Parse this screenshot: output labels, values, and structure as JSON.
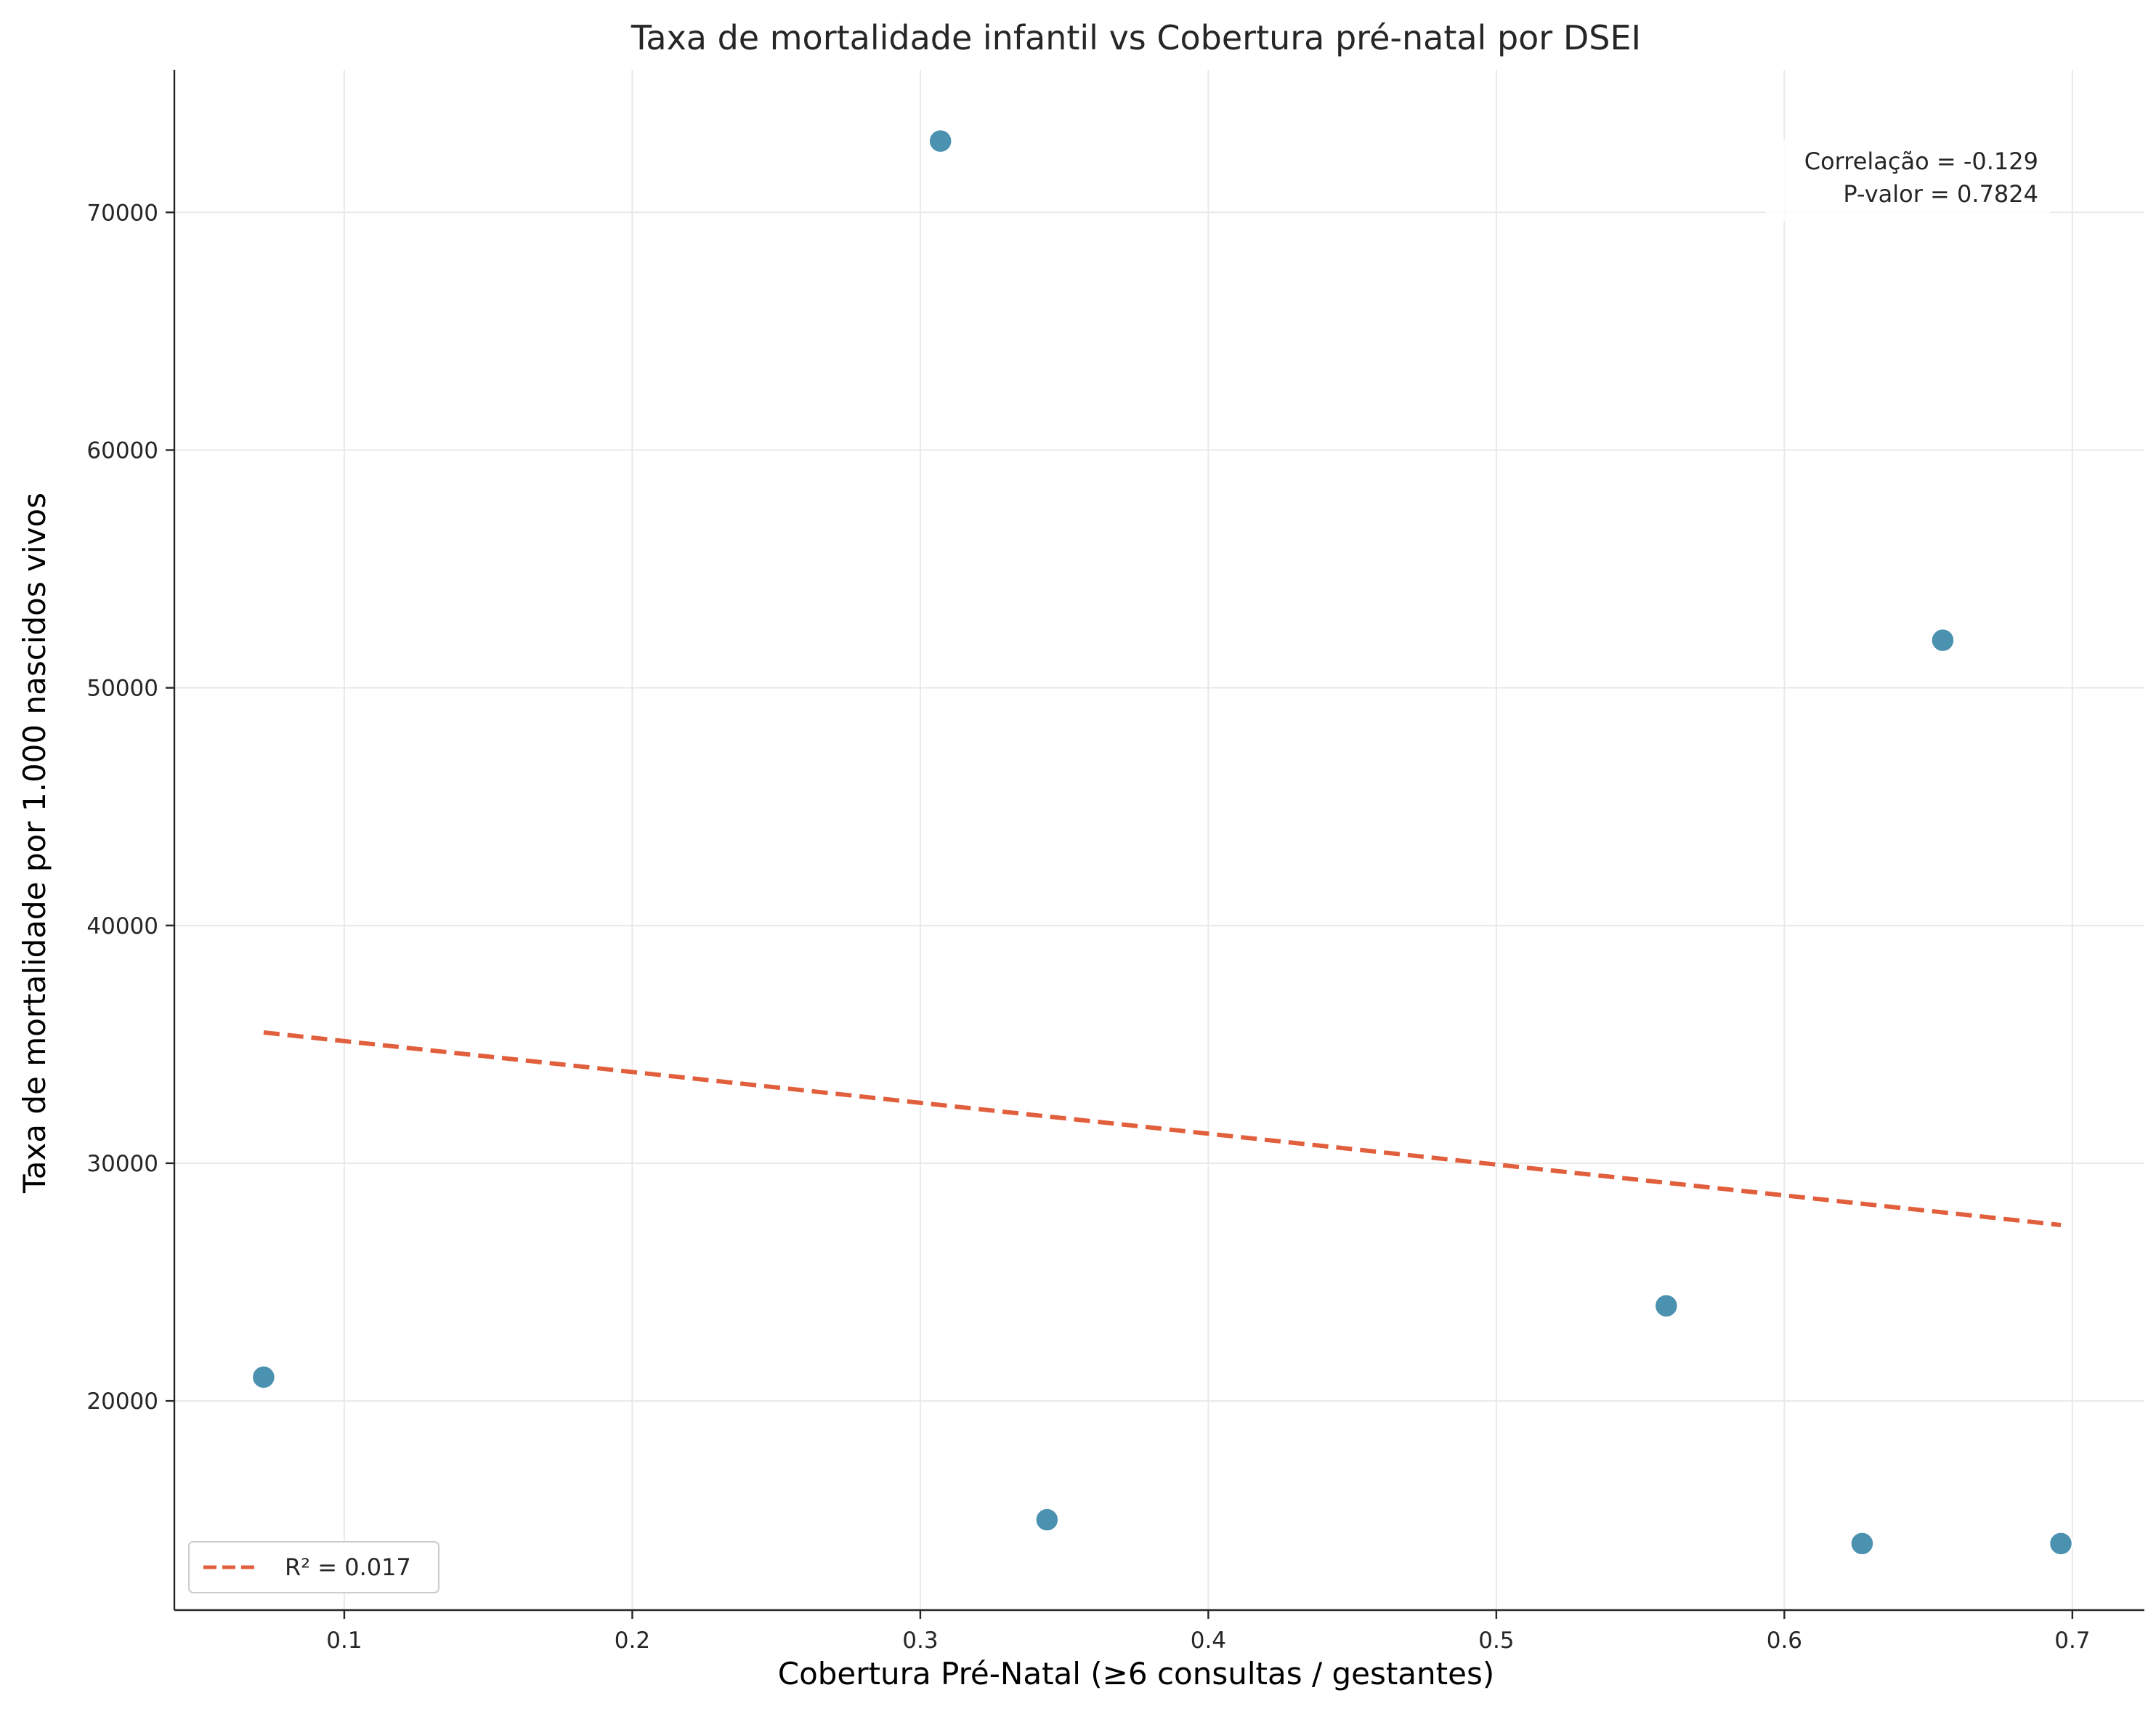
{
  "chart_data": {
    "type": "scatter",
    "title": "Taxa de mortalidade infantil vs Cobertura pré-natal por DSEI",
    "xlabel": "Cobertura Pré-Natal (≥6 consultas / gestantes)",
    "ylabel": "Taxa de mortalidade por 1.000 nascidos vivos",
    "xlim": [
      0.041,
      0.725
    ],
    "ylim": [
      11200,
      76000
    ],
    "xticks": [
      0.1,
      0.2,
      0.3,
      0.4,
      0.5,
      0.6,
      0.7
    ],
    "xtick_labels": [
      "0.1",
      "0.2",
      "0.3",
      "0.4",
      "0.5",
      "0.6",
      "0.7"
    ],
    "yticks": [
      20000,
      30000,
      40000,
      50000,
      60000,
      70000
    ],
    "ytick_labels": [
      "20000",
      "30000",
      "40000",
      "50000",
      "60000",
      "70000"
    ],
    "grid": true,
    "point_color": "#4b91b0",
    "line_color": "#e15f3c",
    "points": [
      {
        "x": 0.072,
        "y": 21000
      },
      {
        "x": 0.307,
        "y": 73000
      },
      {
        "x": 0.344,
        "y": 15000
      },
      {
        "x": 0.559,
        "y": 24000
      },
      {
        "x": 0.627,
        "y": 14000
      },
      {
        "x": 0.655,
        "y": 52000
      },
      {
        "x": 0.696,
        "y": 14000
      }
    ],
    "trendline": {
      "style": "dashed",
      "x": [
        0.072,
        0.696
      ],
      "y": [
        35500,
        27400
      ]
    },
    "annotation": {
      "position": "top-right",
      "lines": [
        "Correlação = -0.129",
        "P-valor = 0.7824"
      ]
    },
    "legend": {
      "position": "lower-left",
      "entries": [
        {
          "label": "R² = 0.017",
          "style": "dashed"
        }
      ]
    }
  }
}
